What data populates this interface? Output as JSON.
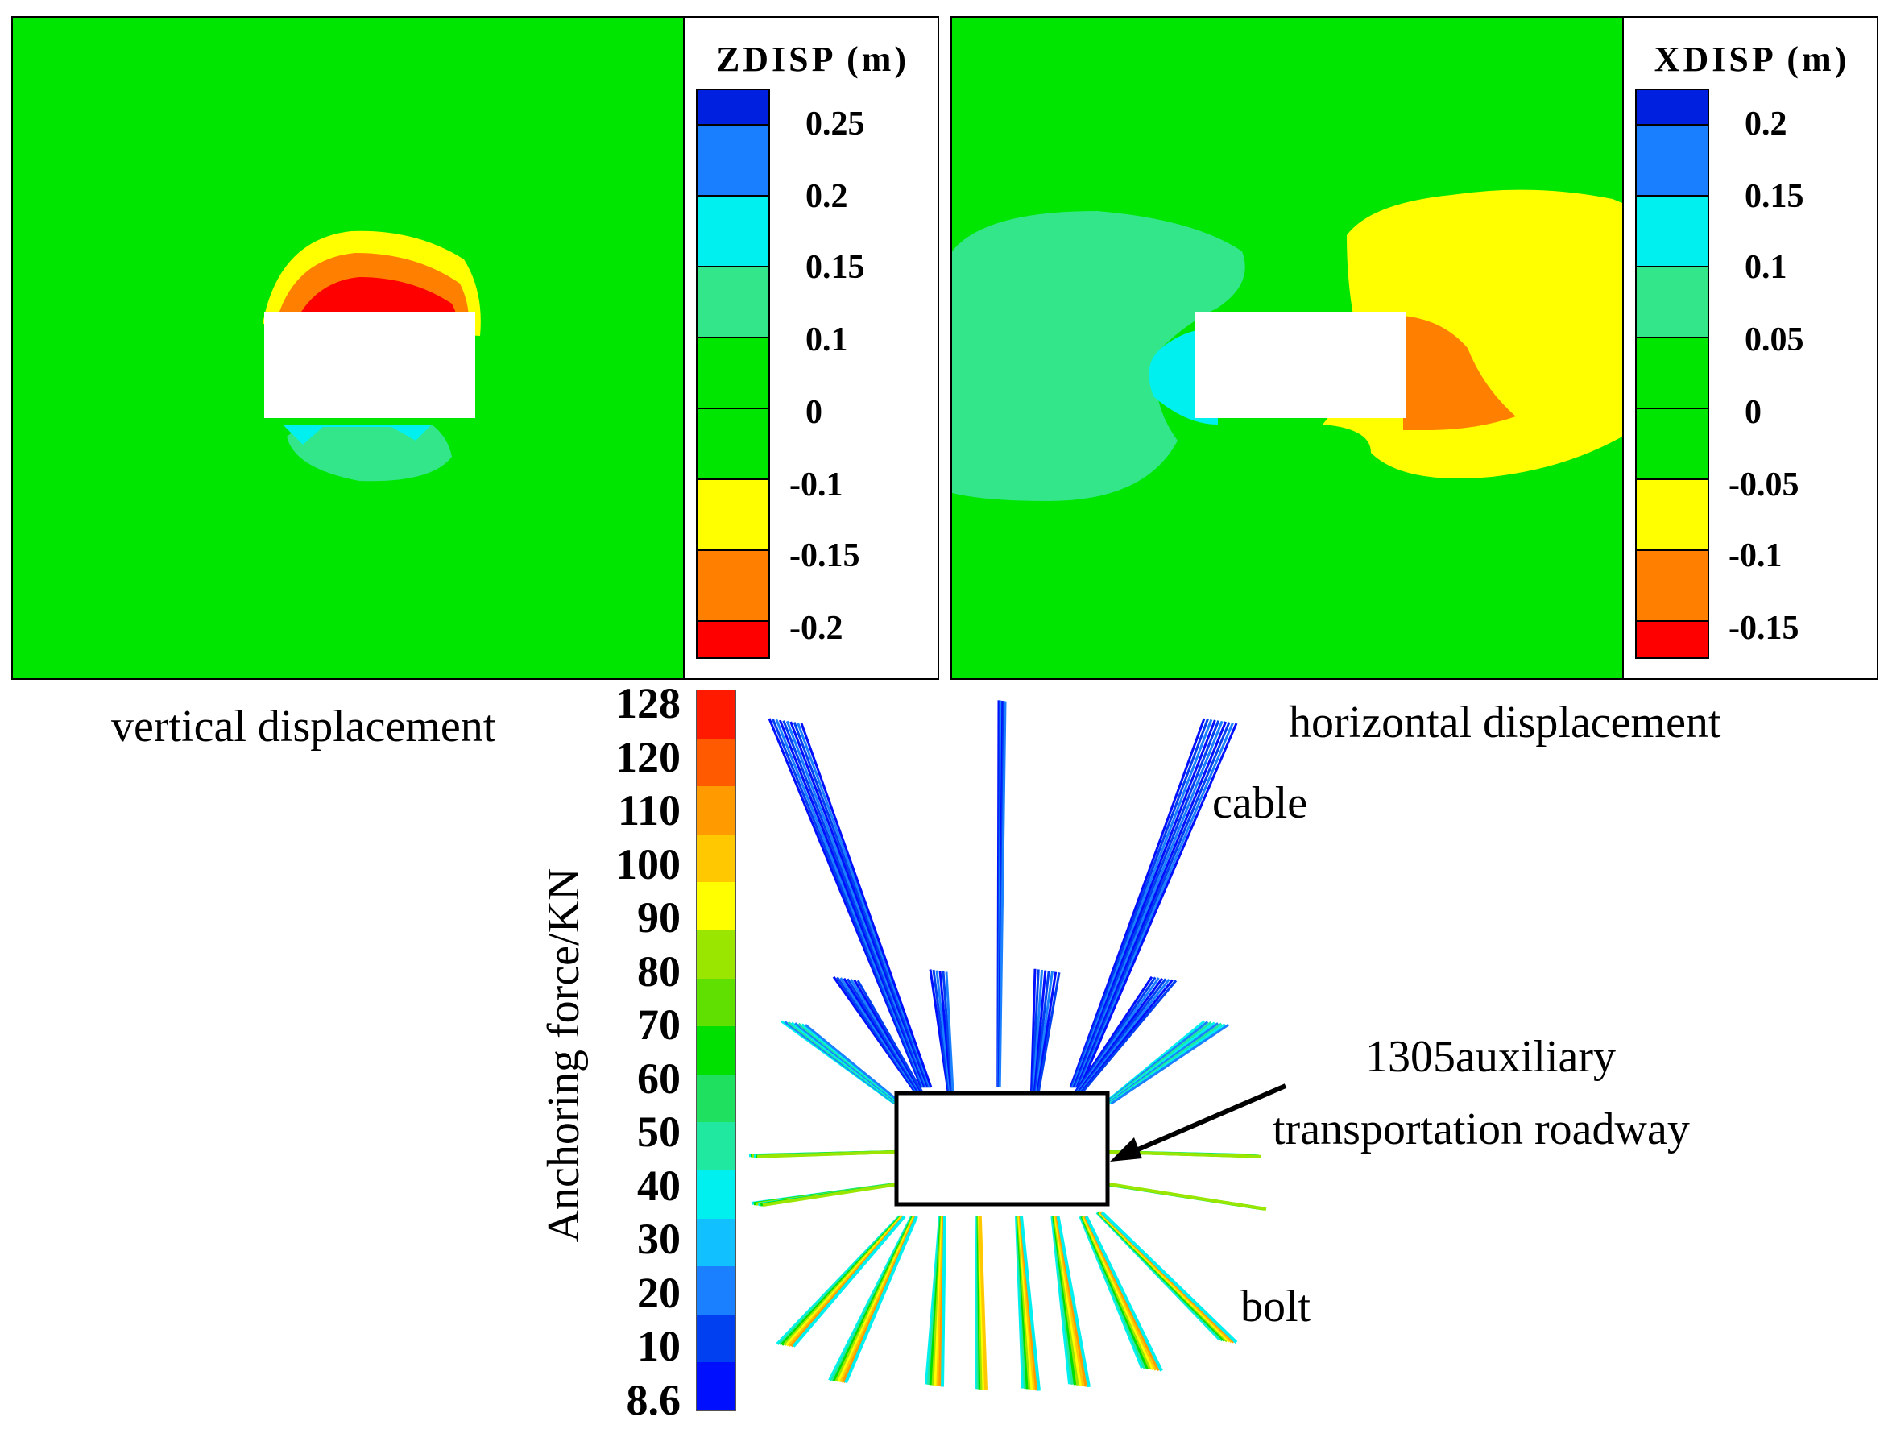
{
  "vertical_panel": {
    "legend_title": "ZDISP (m)",
    "ticks": [
      "0.25",
      "0.2",
      "0.15",
      "0.1",
      "0",
      "-0.1",
      "-0.15",
      "-0.2"
    ],
    "colors": [
      "#0020e0",
      "#1a7fff",
      "#00f0f0",
      "#33e68a",
      "#00e600",
      "#00e600",
      "#ffff00",
      "#ff8000",
      "#ff0000"
    ],
    "caption": "vertical displacement"
  },
  "horizontal_panel": {
    "legend_title": "XDISP (m)",
    "ticks": [
      "0.2",
      "0.15",
      "0.1",
      "0.05",
      "0",
      "-0.05",
      "-0.1",
      "-0.15"
    ],
    "colors": [
      "#0020e0",
      "#1a7fff",
      "#00f0f0",
      "#33e68a",
      "#00e600",
      "#00e600",
      "#ffff00",
      "#ff8000",
      "#ff0000"
    ],
    "caption": "horizontal displacement"
  },
  "anchoring": {
    "axis_label": "Anchoring force/KN",
    "ticks": [
      "128",
      "120",
      "110",
      "100",
      "90",
      "80",
      "70",
      "60",
      "50",
      "40",
      "30",
      "20",
      "10",
      "8.6"
    ],
    "colors": [
      "#ff1a00",
      "#ff5a00",
      "#ff9a00",
      "#ffc800",
      "#ffff00",
      "#9ae600",
      "#60e000",
      "#00e000",
      "#20e060",
      "#20e8a0",
      "#00f0f0",
      "#10c0ff",
      "#1a80ff",
      "#0040f0",
      "#0010ff"
    ],
    "labels": {
      "cable": "cable",
      "bolt": "bolt",
      "roadway_line1": "1305auxiliary",
      "roadway_line2": "transportation roadway"
    }
  }
}
